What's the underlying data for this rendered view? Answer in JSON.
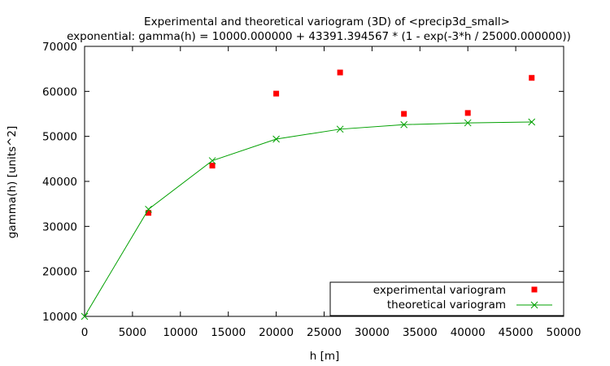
{
  "chart_data": {
    "type": "scatter",
    "title": "Experimental and theoretical variogram (3D) of <precip3d_small>",
    "subtitle": "exponential: gamma(h) = 10000.000000 + 43391.394567 * (1 - exp(-3*h / 25000.000000))",
    "xlabel": "h [m]",
    "ylabel": "gamma(h) [units^2]",
    "xlim": [
      0,
      50000
    ],
    "ylim": [
      10000,
      70000
    ],
    "xticks": [
      0,
      5000,
      10000,
      15000,
      20000,
      25000,
      30000,
      35000,
      40000,
      45000,
      50000
    ],
    "yticks": [
      10000,
      20000,
      30000,
      40000,
      50000,
      60000,
      70000
    ],
    "grid": false,
    "legend_position": "bottom-right",
    "series": [
      {
        "name": "experimental variogram",
        "kind": "points",
        "marker": "square",
        "color": "#ff0000",
        "x": [
          6667,
          13333,
          20000,
          26667,
          33333,
          40000,
          46667
        ],
        "y": [
          33000,
          43500,
          59500,
          64200,
          55000,
          55200,
          63000
        ]
      },
      {
        "name": "theoretical variogram",
        "kind": "linespoints",
        "marker": "x",
        "color": "#00a000",
        "x": [
          0,
          6667,
          13333,
          20000,
          26667,
          33333,
          40000,
          46667
        ],
        "y": [
          10000,
          33800,
          44600,
          49400,
          51600,
          52600,
          53000,
          53200
        ]
      }
    ]
  }
}
